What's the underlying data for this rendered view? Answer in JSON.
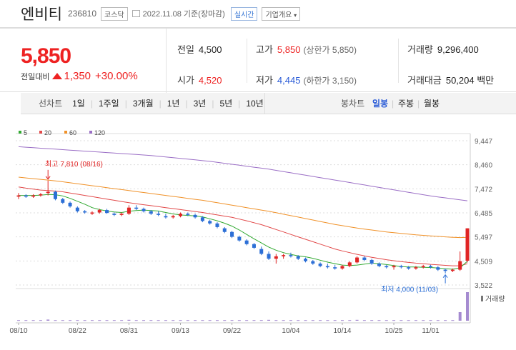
{
  "header": {
    "name": "엔비티",
    "code": "236810",
    "market": "코스닥",
    "date": "2022.11.08 기준(장마감)",
    "realtime": "실시간",
    "overview": "기업개요"
  },
  "summary": {
    "price": "5,850",
    "change_label": "전일대비",
    "change_value": "1,350",
    "change_pct": "+30.00%",
    "prev_label": "전일",
    "prev": "4,500",
    "open_label": "시가",
    "open": "4,520",
    "high_label": "고가",
    "high": "5,850",
    "high_sub": "(상한가 5,850)",
    "low_label": "저가",
    "low": "4,445",
    "low_sub": "(하한가 3,150)",
    "vol_label": "거래량",
    "vol": "9,296,400",
    "amt_label": "거래대금",
    "amt": "50,204 백만"
  },
  "toolbar": {
    "line_label": "선차트",
    "ranges": [
      "1일",
      "1주일",
      "3개월",
      "1년",
      "3년",
      "5년",
      "10년"
    ],
    "candle_label": "봉차트",
    "candle_ranges": [
      "일봉",
      "주봉",
      "월봉"
    ],
    "candle_active": "일봉"
  },
  "chart_data": {
    "type": "candlestick",
    "legend": [
      {
        "name": "5",
        "color": "#33aa33"
      },
      {
        "name": "20",
        "color": "#e24a4a"
      },
      {
        "name": "60",
        "color": "#f0922a"
      },
      {
        "name": "120",
        "color": "#9b6fc6"
      }
    ],
    "y_ticks": [
      9447,
      8460,
      7472,
      6485,
      5497,
      4509,
      3522
    ],
    "y_labels": [
      "9,447",
      "8,460",
      "7,472",
      "6,485",
      "5,497",
      "4,509",
      "3,522"
    ],
    "ylim": [
      3522,
      9447
    ],
    "x_labels": [
      "08/10",
      "08/22",
      "08/31",
      "09/13",
      "09/22",
      "10/04",
      "10/14",
      "10/25",
      "11/01"
    ],
    "x_label_idx": [
      0,
      8,
      15,
      22,
      29,
      37,
      44,
      51,
      56
    ],
    "n": 62,
    "volume_label": "거래량",
    "max_annot": "최고 7,810 (08/16)",
    "max_idx": 4,
    "max_val": 7810,
    "min_annot": "최저 4,000 (11/03)",
    "min_idx": 58,
    "min_val": 4000,
    "candles": [
      [
        7150,
        7300,
        7050,
        7200
      ],
      [
        7200,
        7250,
        7100,
        7150
      ],
      [
        7150,
        7250,
        7100,
        7200
      ],
      [
        7200,
        7300,
        7150,
        7250
      ],
      [
        7300,
        7810,
        7200,
        7350
      ],
      [
        7350,
        7400,
        7000,
        7050
      ],
      [
        7050,
        7100,
        6850,
        6900
      ],
      [
        6900,
        6950,
        6700,
        6750
      ],
      [
        6700,
        6750,
        6500,
        6550
      ],
      [
        6550,
        6600,
        6450,
        6500
      ],
      [
        6450,
        6550,
        6400,
        6500
      ],
      [
        6500,
        6650,
        6450,
        6600
      ],
      [
        6600,
        6650,
        6450,
        6480
      ],
      [
        6450,
        6500,
        6350,
        6400
      ],
      [
        6400,
        6500,
        6350,
        6450
      ],
      [
        6450,
        6800,
        6400,
        6700
      ],
      [
        6700,
        6800,
        6600,
        6650
      ],
      [
        6650,
        6700,
        6500,
        6550
      ],
      [
        6550,
        6600,
        6400,
        6450
      ],
      [
        6450,
        6550,
        6350,
        6400
      ],
      [
        6350,
        6450,
        6250,
        6300
      ],
      [
        6300,
        6400,
        6250,
        6350
      ],
      [
        6350,
        6500,
        6300,
        6450
      ],
      [
        6450,
        6500,
        6350,
        6400
      ],
      [
        6400,
        6450,
        6250,
        6300
      ],
      [
        6300,
        6350,
        6100,
        6150
      ],
      [
        6150,
        6200,
        6000,
        6050
      ],
      [
        6050,
        6100,
        5850,
        5900
      ],
      [
        5850,
        5900,
        5650,
        5700
      ],
      [
        5700,
        5750,
        5450,
        5500
      ],
      [
        5500,
        5550,
        5300,
        5350
      ],
      [
        5350,
        5400,
        5150,
        5200
      ],
      [
        5200,
        5250,
        5000,
        5050
      ],
      [
        5000,
        5100,
        4750,
        4800
      ],
      [
        4800,
        4900,
        4550,
        4600
      ],
      [
        4600,
        4800,
        4400,
        4700
      ],
      [
        4700,
        4800,
        4600,
        4750
      ],
      [
        4750,
        4850,
        4650,
        4700
      ],
      [
        4700,
        4750,
        4550,
        4600
      ],
      [
        4600,
        4650,
        4450,
        4500
      ],
      [
        4500,
        4550,
        4350,
        4400
      ],
      [
        4400,
        4450,
        4250,
        4300
      ],
      [
        4300,
        4400,
        4200,
        4250
      ],
      [
        4250,
        4350,
        4150,
        4200
      ],
      [
        4200,
        4350,
        4150,
        4300
      ],
      [
        4300,
        4500,
        4250,
        4450
      ],
      [
        4450,
        4700,
        4400,
        4650
      ],
      [
        4650,
        4700,
        4500,
        4550
      ],
      [
        4550,
        4600,
        4350,
        4400
      ],
      [
        4400,
        4450,
        4250,
        4300
      ],
      [
        4300,
        4350,
        4200,
        4250
      ],
      [
        4250,
        4350,
        4150,
        4300
      ],
      [
        4300,
        4350,
        4200,
        4250
      ],
      [
        4250,
        4300,
        4150,
        4200
      ],
      [
        4200,
        4300,
        4150,
        4250
      ],
      [
        4250,
        4350,
        4200,
        4300
      ],
      [
        4300,
        4350,
        4200,
        4250
      ],
      [
        4250,
        4300,
        4100,
        4150
      ],
      [
        4150,
        4200,
        4000,
        4100
      ],
      [
        4100,
        4200,
        4050,
        4150
      ],
      [
        4150,
        4900,
        4100,
        4500
      ],
      [
        4520,
        5850,
        4445,
        5850
      ]
    ],
    "volumes": [
      2,
      2,
      2,
      2,
      4,
      2,
      2,
      2,
      2,
      2,
      2,
      2,
      2,
      2,
      2,
      3,
      2,
      2,
      2,
      2,
      2,
      2,
      2,
      2,
      2,
      2,
      2,
      2,
      2,
      2,
      2,
      2,
      2,
      2,
      3,
      2,
      2,
      2,
      2,
      2,
      2,
      2,
      2,
      2,
      2,
      2,
      3,
      2,
      2,
      2,
      2,
      2,
      2,
      2,
      2,
      2,
      2,
      2,
      2,
      2,
      30,
      100
    ],
    "ma5": [
      7200,
      7200,
      7200,
      7210,
      7240,
      7230,
      7180,
      7080,
      6960,
      6840,
      6700,
      6620,
      6560,
      6520,
      6500,
      6550,
      6580,
      6600,
      6580,
      6560,
      6500,
      6440,
      6400,
      6380,
      6360,
      6320,
      6240,
      6160,
      6060,
      5940,
      5780,
      5600,
      5420,
      5250,
      5080,
      4950,
      4850,
      4780,
      4720,
      4680,
      4620,
      4540,
      4460,
      4400,
      4340,
      4320,
      4340,
      4380,
      4420,
      4400,
      4360,
      4320,
      4280,
      4260,
      4260,
      4250,
      4240,
      4220,
      4190,
      4170,
      4230,
      4500
    ],
    "ma20": [
      7550,
      7500,
      7460,
      7420,
      7400,
      7380,
      7350,
      7300,
      7250,
      7200,
      7150,
      7100,
      7050,
      7000,
      6950,
      6900,
      6860,
      6820,
      6780,
      6740,
      6700,
      6660,
      6620,
      6580,
      6540,
      6500,
      6450,
      6400,
      6350,
      6300,
      6230,
      6160,
      6080,
      6000,
      5900,
      5800,
      5700,
      5600,
      5500,
      5400,
      5300,
      5200,
      5100,
      5000,
      4920,
      4850,
      4780,
      4720,
      4660,
      4610,
      4560,
      4520,
      4480,
      4450,
      4420,
      4400,
      4370,
      4350,
      4330,
      4310,
      4310,
      4400
    ],
    "ma60": [
      7950,
      7920,
      7890,
      7860,
      7830,
      7800,
      7760,
      7720,
      7680,
      7640,
      7600,
      7560,
      7520,
      7480,
      7440,
      7400,
      7360,
      7320,
      7280,
      7240,
      7200,
      7160,
      7120,
      7080,
      7040,
      7000,
      6950,
      6900,
      6850,
      6800,
      6750,
      6700,
      6650,
      6600,
      6550,
      6490,
      6430,
      6370,
      6310,
      6250,
      6190,
      6130,
      6070,
      6010,
      5960,
      5910,
      5860,
      5820,
      5780,
      5740,
      5700,
      5670,
      5640,
      5610,
      5580,
      5560,
      5540,
      5520,
      5500,
      5480,
      5470,
      5480
    ],
    "ma120": [
      9200,
      9180,
      9160,
      9140,
      9120,
      9100,
      9080,
      9060,
      9040,
      9020,
      9000,
      8980,
      8960,
      8940,
      8920,
      8900,
      8880,
      8860,
      8840,
      8810,
      8780,
      8750,
      8720,
      8690,
      8660,
      8630,
      8600,
      8560,
      8520,
      8480,
      8440,
      8400,
      8360,
      8320,
      8280,
      8230,
      8180,
      8130,
      8080,
      8030,
      7980,
      7930,
      7880,
      7830,
      7780,
      7730,
      7680,
      7630,
      7580,
      7530,
      7480,
      7430,
      7380,
      7330,
      7280,
      7230,
      7180,
      7140,
      7100,
      7060,
      7020,
      6980
    ]
  }
}
